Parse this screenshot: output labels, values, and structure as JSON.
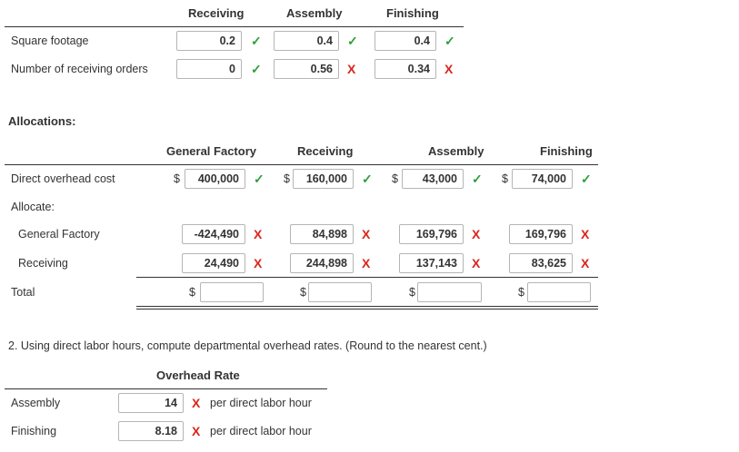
{
  "top_table": {
    "headers": [
      "Receiving",
      "Assembly",
      "Finishing"
    ],
    "rows": [
      {
        "label": "Square footage",
        "values": [
          "0.2",
          "0.4",
          "0.4"
        ],
        "marks": [
          "check",
          "check",
          "check"
        ]
      },
      {
        "label": "Number of receiving orders",
        "values": [
          "0",
          "0.56",
          "0.34"
        ],
        "marks": [
          "check",
          "x",
          "x"
        ]
      }
    ]
  },
  "allocations": {
    "title": "Allocations:",
    "headers": [
      "General Factory",
      "Receiving",
      "Assembly",
      "Finishing"
    ],
    "direct_overhead": {
      "label": "Direct overhead cost",
      "values": [
        "400,000",
        "160,000",
        "43,000",
        "74,000"
      ],
      "marks": [
        "check",
        "check",
        "check",
        "check"
      ]
    },
    "allocate_label": "Allocate:",
    "general_factory": {
      "label": "General Factory",
      "values": [
        "-424,490",
        "84,898",
        "169,796",
        "169,796"
      ],
      "marks": [
        "x",
        "x",
        "x",
        "x"
      ]
    },
    "receiving": {
      "label": "Receiving",
      "values": [
        "24,490",
        "244,898",
        "137,143",
        "83,625"
      ],
      "marks": [
        "x",
        "x",
        "x",
        "x"
      ]
    },
    "total": {
      "label": "Total",
      "values": [
        "",
        "",
        "",
        ""
      ]
    }
  },
  "question2": {
    "text": "2. Using direct labor hours, compute departmental overhead rates. (Round to the nearest cent.)",
    "header": "Overhead Rate",
    "rows": [
      {
        "label": "Assembly",
        "value": "14",
        "mark": "x",
        "unit": "per direct labor hour"
      },
      {
        "label": "Finishing",
        "value": "8.18",
        "mark": "x",
        "unit": "per direct labor hour"
      }
    ]
  },
  "symbols": {
    "check": "✓",
    "x": "X",
    "dollar": "$"
  },
  "colors": {
    "check": "#2f9e3a",
    "x": "#d9261c"
  }
}
